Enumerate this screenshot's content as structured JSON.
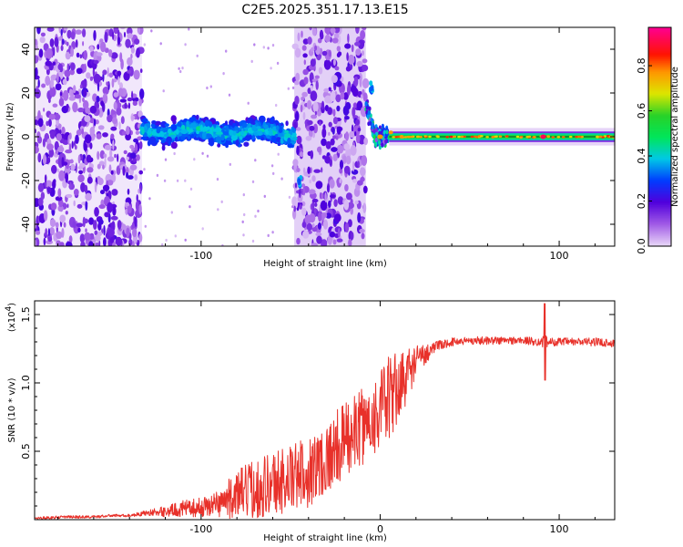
{
  "colors": {
    "background": "#ffffff",
    "axis": "#000000",
    "snr_line": "#e8312a",
    "baseline": "#000000"
  },
  "chart_data": [
    {
      "type": "heatmap",
      "title": "C2E5.2025.351.17.13.E15",
      "xlabel": "Height of straight line (km)",
      "ylabel": "Frequency (Hz)",
      "xlim": [
        -193,
        131
      ],
      "ylim": [
        -50,
        50
      ],
      "xticks": [
        -100,
        100
      ],
      "yticks": [
        -40,
        -20,
        0,
        20,
        40
      ],
      "colorbar": {
        "label": "Normalized spectral amplitude",
        "range": [
          0.0,
          0.97
        ],
        "ticks": [
          0.0,
          0.2,
          0.4,
          0.6,
          0.8
        ],
        "colormap": "rainbow (violet-blue-cyan-green-yellow-red-magenta)"
      },
      "regions": [
        {
          "x": [
            -193,
            -133
          ],
          "description": "diffuse noise across all frequencies",
          "amplitude": [
            0.05,
            0.2
          ]
        },
        {
          "x": [
            -133,
            -48
          ],
          "center_freq": 3,
          "spread_hz": 9,
          "amplitude": [
            0.1,
            0.4
          ]
        },
        {
          "x": [
            -48,
            -8
          ],
          "description": "diffuse noise across all frequencies",
          "amplitude": [
            0.05,
            0.2
          ]
        },
        {
          "x": [
            -8,
            5
          ],
          "description": "transition with frequency swing",
          "amplitude": [
            0.1,
            0.6
          ]
        },
        {
          "x": [
            5,
            131
          ],
          "center_freq": 0,
          "spread_hz": 2,
          "amplitude": [
            0.5,
            0.97
          ]
        }
      ],
      "features": [
        {
          "x": -45,
          "y": -21,
          "label": "spike"
        },
        {
          "x": -5,
          "y": 22,
          "label": "spike"
        },
        {
          "x": 91,
          "y": 0,
          "label": "spike"
        }
      ]
    },
    {
      "type": "line",
      "xlabel": "Height of straight line (km)",
      "ylabel": "SNR (10 * v/v)",
      "y_multiplier": "(x10",
      "y_multiplier_exp": "4",
      "y_multiplier_close": ")",
      "xlim": [
        -193,
        131
      ],
      "ylim": [
        0,
        1.6
      ],
      "xticks": [
        -100,
        0,
        100
      ],
      "yticks": [
        0.5,
        1.0,
        1.5
      ],
      "series": [
        {
          "name": "SNR",
          "x": [
            -193,
            -175,
            -160,
            -150,
            -140,
            -130,
            -120,
            -110,
            -100,
            -90,
            -80,
            -70,
            -60,
            -50,
            -40,
            -30,
            -20,
            -10,
            0,
            5,
            10,
            15,
            20,
            30,
            40,
            50,
            60,
            70,
            80,
            88,
            92,
            96,
            100,
            110,
            120,
            131
          ],
          "y": [
            0.01,
            0.02,
            0.02,
            0.03,
            0.03,
            0.05,
            0.06,
            0.08,
            0.09,
            0.12,
            0.18,
            0.23,
            0.27,
            0.3,
            0.35,
            0.45,
            0.58,
            0.68,
            0.8,
            0.88,
            0.96,
            1.06,
            1.16,
            1.26,
            1.3,
            1.31,
            1.31,
            1.31,
            1.31,
            1.3,
            1.3,
            1.3,
            1.3,
            1.3,
            1.3,
            1.29
          ],
          "noise_amplitude": [
            0.01,
            0.01,
            0.01,
            0.01,
            0.01,
            0.02,
            0.04,
            0.06,
            0.07,
            0.1,
            0.18,
            0.22,
            0.25,
            0.25,
            0.26,
            0.27,
            0.28,
            0.28,
            0.3,
            0.32,
            0.28,
            0.2,
            0.12,
            0.04,
            0.03,
            0.03,
            0.03,
            0.03,
            0.03,
            0.03,
            0.05,
            0.03,
            0.03,
            0.03,
            0.03,
            0.03
          ]
        }
      ],
      "annotations": [
        {
          "x": 92,
          "y": 1.58,
          "label": "peak"
        },
        {
          "x": 92,
          "y": 1.02,
          "label": "dip"
        }
      ]
    }
  ]
}
